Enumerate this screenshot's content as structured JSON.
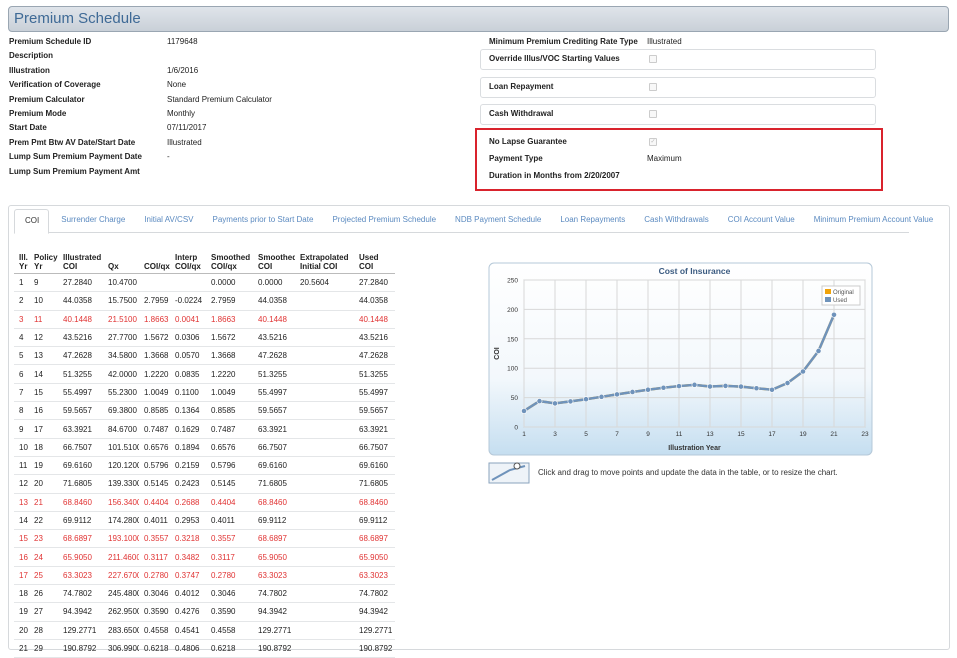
{
  "header": {
    "title": "Premium Schedule"
  },
  "left_fields": [
    {
      "label": "Premium Schedule ID",
      "value": "1179648"
    },
    {
      "label": "Description",
      "value": null
    },
    {
      "label": "Illustration",
      "value": "1/6/2016"
    },
    {
      "label": "Verification of Coverage",
      "value": "None"
    },
    {
      "label": "Premium Calculator",
      "value": "Standard Premium Calculator"
    },
    {
      "label": "Premium Mode",
      "value": "Monthly"
    },
    {
      "label": "Start Date",
      "value": "07/11/2017"
    },
    {
      "label": "Prem Pmt Btw AV Date/Start Date",
      "value": "Illustrated"
    },
    {
      "label": "Lump Sum Premium Payment Date",
      "value": "-"
    },
    {
      "label": "Lump Sum Premium Payment Amt",
      "value": null
    }
  ],
  "right_fields": [
    {
      "label": "Minimum Premium Crediting Rate Type",
      "value": "Illustrated"
    }
  ],
  "option_boxes": [
    {
      "label": "Override Illus/VOC Starting Values",
      "checked": false
    },
    {
      "label": "Loan Repayment",
      "checked": false
    },
    {
      "label": "Cash Withdrawal",
      "checked": false
    }
  ],
  "highlight_box": {
    "border_color": "#d9232d",
    "fields": [
      {
        "label": "No Lapse Guarantee",
        "checked": true
      },
      {
        "label": "Payment Type",
        "value": "Maximum"
      },
      {
        "label": "Duration in Months from 2/20/2007",
        "value": null
      }
    ]
  },
  "tabs": {
    "items": [
      "COI",
      "Surrender Charge",
      "Initial AV/CSV",
      "Payments prior to Start Date",
      "Projected Premium Schedule",
      "NDB Payment Schedule",
      "Loan Repayments",
      "Cash Withdrawals",
      "COI Account Value",
      "Minimum Premium Account Value"
    ],
    "active": 0
  },
  "table": {
    "columns": [
      [
        "Ill.",
        "Yr"
      ],
      [
        "Policy",
        "Yr"
      ],
      [
        "Illustrated",
        "COI"
      ],
      [
        "Qx"
      ],
      [
        "COI/qx"
      ],
      [
        "Interp",
        "COI/qx"
      ],
      [
        "Smoothed",
        "COI/qx"
      ],
      [
        "Smoothed",
        "COI"
      ],
      [
        "Extrapolated",
        "Initial COI"
      ],
      [
        "Used",
        "COI"
      ]
    ],
    "highlight_color": "#e03333",
    "highlighted_rows": [
      2,
      12,
      14,
      15,
      16
    ],
    "rows": [
      [
        "1",
        "9",
        "27.2840",
        "10.4700",
        null,
        null,
        "0.0000",
        "0.0000",
        "20.5604",
        "27.2840"
      ],
      [
        "2",
        "10",
        "44.0358",
        "15.7500",
        "2.7959",
        "-0.0224",
        "2.7959",
        "44.0358",
        null,
        "44.0358"
      ],
      [
        "3",
        "11",
        "40.1448",
        "21.5100",
        "1.8663",
        "0.0041",
        "1.8663",
        "40.1448",
        null,
        "40.1448"
      ],
      [
        "4",
        "12",
        "43.5216",
        "27.7700",
        "1.5672",
        "0.0306",
        "1.5672",
        "43.5216",
        null,
        "43.5216"
      ],
      [
        "5",
        "13",
        "47.2628",
        "34.5800",
        "1.3668",
        "0.0570",
        "1.3668",
        "47.2628",
        null,
        "47.2628"
      ],
      [
        "6",
        "14",
        "51.3255",
        "42.0000",
        "1.2220",
        "0.0835",
        "1.2220",
        "51.3255",
        null,
        "51.3255"
      ],
      [
        "7",
        "15",
        "55.4997",
        "55.2300",
        "1.0049",
        "0.1100",
        "1.0049",
        "55.4997",
        null,
        "55.4997"
      ],
      [
        "8",
        "16",
        "59.5657",
        "69.3800",
        "0.8585",
        "0.1364",
        "0.8585",
        "59.5657",
        null,
        "59.5657"
      ],
      [
        "9",
        "17",
        "63.3921",
        "84.6700",
        "0.7487",
        "0.1629",
        "0.7487",
        "63.3921",
        null,
        "63.3921"
      ],
      [
        "10",
        "18",
        "66.7507",
        "101.5100",
        "0.6576",
        "0.1894",
        "0.6576",
        "66.7507",
        null,
        "66.7507"
      ],
      [
        "11",
        "19",
        "69.6160",
        "120.1200",
        "0.5796",
        "0.2159",
        "0.5796",
        "69.6160",
        null,
        "69.6160"
      ],
      [
        "12",
        "20",
        "71.6805",
        "139.3300",
        "0.5145",
        "0.2423",
        "0.5145",
        "71.6805",
        null,
        "71.6805"
      ],
      [
        "13",
        "21",
        "68.8460",
        "156.3400",
        "0.4404",
        "0.2688",
        "0.4404",
        "68.8460",
        null,
        "68.8460"
      ],
      [
        "14",
        "22",
        "69.9112",
        "174.2800",
        "0.4011",
        "0.2953",
        "0.4011",
        "69.9112",
        null,
        "69.9112"
      ],
      [
        "15",
        "23",
        "68.6897",
        "193.1000",
        "0.3557",
        "0.3218",
        "0.3557",
        "68.6897",
        null,
        "68.6897"
      ],
      [
        "16",
        "24",
        "65.9050",
        "211.4600",
        "0.3117",
        "0.3482",
        "0.3117",
        "65.9050",
        null,
        "65.9050"
      ],
      [
        "17",
        "25",
        "63.3023",
        "227.6700",
        "0.2780",
        "0.3747",
        "0.2780",
        "63.3023",
        null,
        "63.3023"
      ],
      [
        "18",
        "26",
        "74.7802",
        "245.4800",
        "0.3046",
        "0.4012",
        "0.3046",
        "74.7802",
        null,
        "74.7802"
      ],
      [
        "19",
        "27",
        "94.3942",
        "262.9500",
        "0.3590",
        "0.4276",
        "0.3590",
        "94.3942",
        null,
        "94.3942"
      ],
      [
        "20",
        "28",
        "129.2771",
        "283.6500",
        "0.4558",
        "0.4541",
        "0.4558",
        "129.2771",
        null,
        "129.2771"
      ],
      [
        "21",
        "29",
        "190.8792",
        "306.9900",
        "0.6218",
        "0.4806",
        "0.6218",
        "190.8792",
        null,
        "190.8792"
      ]
    ]
  },
  "chart_data": {
    "type": "line",
    "title": "Cost of Insurance",
    "x_label": "Illustration Year",
    "y_label": "COI",
    "x": [
      1,
      2,
      3,
      4,
      5,
      6,
      7,
      8,
      9,
      10,
      11,
      12,
      13,
      14,
      15,
      16,
      17,
      18,
      19,
      20,
      21
    ],
    "series": [
      {
        "name": "Original",
        "color": "#f0a30a",
        "values": [
          27.284,
          44.0358,
          40.1448,
          43.5216,
          47.2628,
          51.3255,
          55.4997,
          59.5657,
          63.3921,
          66.7507,
          69.616,
          71.6805,
          68.846,
          69.9112,
          68.6897,
          65.905,
          63.3023,
          74.7802,
          94.3942,
          129.2771,
          190.8792
        ]
      },
      {
        "name": "Used",
        "color": "#6f93bb",
        "values": [
          27.284,
          44.0358,
          40.1448,
          43.5216,
          47.2628,
          51.3255,
          55.4997,
          59.5657,
          63.3921,
          66.7507,
          69.616,
          71.6805,
          68.846,
          69.9112,
          68.6897,
          65.905,
          63.3023,
          74.7802,
          94.3942,
          129.2771,
          190.8792
        ]
      }
    ],
    "xlim": [
      1,
      23
    ],
    "xticks": [
      1,
      3,
      5,
      7,
      9,
      11,
      13,
      15,
      17,
      19,
      21,
      23
    ],
    "ylim": [
      0,
      250
    ],
    "yticks": [
      0,
      50,
      100,
      150,
      200,
      250
    ],
    "grid": true,
    "legend": "top-right"
  },
  "hint": "Click and drag to move points and update the data in the table, or to resize the chart."
}
